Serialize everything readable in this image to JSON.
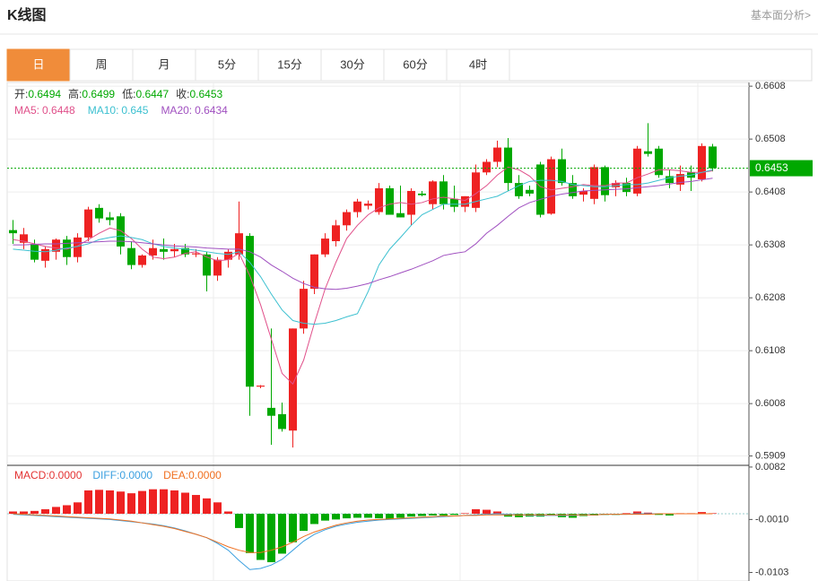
{
  "header": {
    "title": "K线图",
    "link": "基本面分析>"
  },
  "tabs": [
    "日",
    "周",
    "月",
    "5分",
    "15分",
    "30分",
    "60分",
    "4时"
  ],
  "active_tab": 0,
  "chart_data": [
    {
      "type": "candlestick",
      "ohlc_labels": [
        "开:",
        "高:",
        "低:",
        "收:"
      ],
      "up_color": "#ee2222",
      "down_color": "#00a800",
      "ylim": [
        0.5893,
        0.6615
      ],
      "yticks": [
        0.6608,
        0.6508,
        0.6408,
        0.6308,
        0.6208,
        0.6108,
        0.6008,
        0.5909
      ],
      "grid": true,
      "open": [
        0.6336,
        0.6312,
        0.631,
        0.6278,
        0.6295,
        0.6318,
        0.6285,
        0.6322,
        0.6378,
        0.636,
        0.6362,
        0.6302,
        0.627,
        0.6288,
        0.63,
        0.6296,
        0.6302,
        0.629,
        0.629,
        0.625,
        0.628,
        0.629,
        0.6325,
        0.604,
        0.6,
        0.5988,
        0.5957,
        0.615,
        0.6225,
        0.629,
        0.6315,
        0.6345,
        0.637,
        0.6382,
        0.637,
        0.6415,
        0.6368,
        0.6365,
        0.6405,
        0.6385,
        0.6428,
        0.6395,
        0.638,
        0.6378,
        0.6445,
        0.6465,
        0.6492,
        0.6425,
        0.6412,
        0.646,
        0.6367,
        0.647,
        0.6425,
        0.6403,
        0.6395,
        0.6455,
        0.6417,
        0.6425,
        0.6405,
        0.6485,
        0.649,
        0.6438,
        0.6422,
        0.6445,
        0.6432,
        0.6494
      ],
      "high": [
        0.6355,
        0.634,
        0.6318,
        0.6305,
        0.632,
        0.6325,
        0.633,
        0.638,
        0.6385,
        0.637,
        0.6368,
        0.6315,
        0.629,
        0.6318,
        0.632,
        0.631,
        0.631,
        0.63,
        0.6295,
        0.6285,
        0.63,
        0.639,
        0.633,
        0.6043,
        0.615,
        0.601,
        0.615,
        0.624,
        0.629,
        0.633,
        0.6355,
        0.6375,
        0.6395,
        0.6392,
        0.6425,
        0.642,
        0.642,
        0.6415,
        0.641,
        0.643,
        0.644,
        0.642,
        0.64,
        0.646,
        0.647,
        0.6505,
        0.651,
        0.644,
        0.642,
        0.6465,
        0.6475,
        0.649,
        0.644,
        0.6415,
        0.646,
        0.6458,
        0.643,
        0.6435,
        0.6495,
        0.6538,
        0.6495,
        0.645,
        0.6458,
        0.6458,
        0.65,
        0.6499
      ],
      "low": [
        0.631,
        0.63,
        0.6275,
        0.6265,
        0.628,
        0.627,
        0.6275,
        0.6315,
        0.635,
        0.6345,
        0.629,
        0.6262,
        0.6265,
        0.628,
        0.628,
        0.6285,
        0.6285,
        0.6285,
        0.622,
        0.624,
        0.6265,
        0.628,
        0.5985,
        0.6037,
        0.593,
        0.5955,
        0.5925,
        0.614,
        0.6215,
        0.6285,
        0.6305,
        0.6335,
        0.636,
        0.6375,
        0.6365,
        0.6365,
        0.636,
        0.6345,
        0.64,
        0.6375,
        0.6375,
        0.637,
        0.637,
        0.637,
        0.644,
        0.6455,
        0.641,
        0.6395,
        0.64,
        0.636,
        0.6365,
        0.642,
        0.6395,
        0.639,
        0.6385,
        0.639,
        0.64,
        0.64,
        0.64,
        0.6475,
        0.6435,
        0.6415,
        0.641,
        0.641,
        0.6428,
        0.6447
      ],
      "close": [
        0.633,
        0.6328,
        0.628,
        0.63,
        0.6318,
        0.6285,
        0.6322,
        0.6375,
        0.6358,
        0.6355,
        0.6305,
        0.627,
        0.6288,
        0.6302,
        0.6295,
        0.63,
        0.629,
        0.6292,
        0.625,
        0.628,
        0.6295,
        0.633,
        0.604,
        0.6042,
        0.5985,
        0.596,
        0.615,
        0.6225,
        0.629,
        0.632,
        0.6345,
        0.637,
        0.639,
        0.6386,
        0.6415,
        0.6365,
        0.636,
        0.641,
        0.6402,
        0.6428,
        0.6385,
        0.638,
        0.64,
        0.6445,
        0.6465,
        0.6492,
        0.6425,
        0.64,
        0.6405,
        0.6365,
        0.647,
        0.6425,
        0.64,
        0.641,
        0.6455,
        0.6402,
        0.6425,
        0.6408,
        0.649,
        0.648,
        0.644,
        0.6425,
        0.6442,
        0.6435,
        0.6495,
        0.6453
      ],
      "series": [
        {
          "name": "MA5: ",
          "color": "#e0508a",
          "values": [
            0.6318,
            0.6315,
            0.631,
            0.6305,
            0.6302,
            0.63,
            0.6306,
            0.6318,
            0.633,
            0.634,
            0.6335,
            0.632,
            0.63,
            0.6285,
            0.6282,
            0.6285,
            0.6292,
            0.6295,
            0.6285,
            0.6278,
            0.628,
            0.6292,
            0.625,
            0.6195,
            0.613,
            0.6065,
            0.6045,
            0.609,
            0.616,
            0.6225,
            0.6275,
            0.632,
            0.6345,
            0.6365,
            0.6378,
            0.6385,
            0.6388,
            0.6385,
            0.6388,
            0.6395,
            0.6398,
            0.6395,
            0.6392,
            0.6405,
            0.642,
            0.644,
            0.6455,
            0.645,
            0.6438,
            0.6418,
            0.6412,
            0.6415,
            0.6418,
            0.6422,
            0.642,
            0.642,
            0.6425,
            0.6425,
            0.6435,
            0.6442,
            0.645,
            0.645,
            0.6448,
            0.6445,
            0.6445,
            0.6448
          ]
        },
        {
          "name": "MA10: ",
          "color": "#3cc0d0",
          "values": [
            0.63,
            0.6298,
            0.6296,
            0.6295,
            0.6298,
            0.6302,
            0.6305,
            0.631,
            0.6318,
            0.6322,
            0.6325,
            0.6322,
            0.6318,
            0.631,
            0.6305,
            0.6302,
            0.63,
            0.6298,
            0.6295,
            0.6292,
            0.629,
            0.6295,
            0.6275,
            0.6248,
            0.6215,
            0.6185,
            0.6165,
            0.616,
            0.6158,
            0.616,
            0.6165,
            0.6172,
            0.6178,
            0.622,
            0.627,
            0.63,
            0.6322,
            0.6345,
            0.6365,
            0.6375,
            0.6385,
            0.6385,
            0.6385,
            0.639,
            0.6395,
            0.64,
            0.641,
            0.642,
            0.6428,
            0.643,
            0.643,
            0.6428,
            0.6422,
            0.642,
            0.6418,
            0.6418,
            0.642,
            0.6422,
            0.6422,
            0.6425,
            0.643,
            0.6435,
            0.6438,
            0.644,
            0.6445,
            0.645
          ]
        },
        {
          "name": "MA20: ",
          "color": "#a050c0",
          "values": [
            0.6308,
            0.6308,
            0.6309,
            0.631,
            0.631,
            0.6311,
            0.6312,
            0.6313,
            0.6314,
            0.6315,
            0.6315,
            0.6314,
            0.6312,
            0.631,
            0.6308,
            0.6306,
            0.6305,
            0.6304,
            0.6302,
            0.6301,
            0.63,
            0.63,
            0.6295,
            0.6285,
            0.627,
            0.6258,
            0.6245,
            0.6235,
            0.6228,
            0.6225,
            0.6224,
            0.6226,
            0.623,
            0.6235,
            0.6242,
            0.6248,
            0.6255,
            0.6262,
            0.627,
            0.6278,
            0.6288,
            0.6292,
            0.6295,
            0.631,
            0.633,
            0.6345,
            0.6362,
            0.6378,
            0.6388,
            0.6394,
            0.64,
            0.6404,
            0.6407,
            0.641,
            0.6411,
            0.6412,
            0.6413,
            0.6414,
            0.6416,
            0.6418,
            0.642,
            0.6423,
            0.6426,
            0.6428,
            0.6431,
            0.6434
          ]
        }
      ]
    },
    {
      "type": "macd",
      "histogram_name": "MACD:",
      "histogram_color": "#e33333",
      "legend_values": [
        {
          "value": 0,
          "label": "0.0000"
        },
        {
          "value": 0,
          "label": "0.0000"
        },
        {
          "value": 0,
          "label": "0.0000"
        }
      ],
      "up_color": "#ee2222",
      "down_color": "#00a800",
      "ylim": [
        -0.0118,
        0.0085
      ],
      "yticks": [
        0.0082,
        {
          "value": -0.001,
          "label": "-0.0010"
        },
        -0.0103
      ],
      "histogram": [
        0.0004,
        0.0004,
        0.0005,
        0.0008,
        0.0012,
        0.0015,
        0.002,
        0.0041,
        0.0042,
        0.0041,
        0.0039,
        0.0036,
        0.004,
        0.0043,
        0.0043,
        0.0041,
        0.0037,
        0.0033,
        0.0027,
        0.002,
        0.0004,
        -0.0025,
        -0.0069,
        -0.0081,
        -0.0085,
        -0.007,
        -0.005,
        -0.003,
        -0.0018,
        -0.0012,
        -0.001,
        -0.0008,
        -0.0007,
        -0.0007,
        -0.0008,
        -0.001,
        -0.0007,
        -0.0005,
        -0.0004,
        -0.0003,
        -0.0003,
        -0.0002,
        0.0001,
        0.0008,
        0.0007,
        0.0004,
        -0.0005,
        -0.0006,
        -0.0005,
        -0.0005,
        -0.0003,
        -0.0006,
        -0.0007,
        -0.0004,
        -0.0003,
        -0.0002,
        -0.0002,
        0.0001,
        0.0004,
        0.0002,
        -0.0002,
        -0.0003,
        0.0001,
        0.0001,
        0.0003,
        0.0001
      ],
      "series": [
        {
          "name": "DIFF:",
          "color": "#3ca0e0",
          "values": [
            -0.0001,
            -0.0002,
            -0.0003,
            -0.0004,
            -0.0005,
            -0.0006,
            -0.0007,
            -0.0008,
            -0.0009,
            -0.001,
            -0.0012,
            -0.0014,
            -0.0016,
            -0.0018,
            -0.0021,
            -0.0025,
            -0.003,
            -0.0036,
            -0.0042,
            -0.0052,
            -0.0064,
            -0.0082,
            -0.0098,
            -0.0096,
            -0.009,
            -0.008,
            -0.0064,
            -0.0048,
            -0.0036,
            -0.0028,
            -0.0022,
            -0.0018,
            -0.0015,
            -0.0013,
            -0.0011,
            -0.001,
            -0.0009,
            -0.0008,
            -0.0007,
            -0.0006,
            -0.0005,
            -0.0004,
            -0.0003,
            -0.0002,
            -0.0001,
            0,
            -0.0001,
            -0.0002,
            -0.0003,
            -0.0003,
            -0.0003,
            -0.0003,
            -0.0003,
            -0.0002,
            -0.0002,
            -0.0001,
            -0.0001,
            -0.0001,
            0,
            0,
            0,
            0,
            0,
            0,
            0,
            0
          ]
        },
        {
          "name": "DEA:",
          "color": "#f07020",
          "values": [
            0,
            -0.0001,
            -0.0002,
            -0.0003,
            -0.0004,
            -0.0005,
            -0.0006,
            -0.0007,
            -0.0008,
            -0.0009,
            -0.0011,
            -0.0013,
            -0.0016,
            -0.0019,
            -0.0022,
            -0.0026,
            -0.0031,
            -0.0036,
            -0.0042,
            -0.005,
            -0.0058,
            -0.0064,
            -0.0068,
            -0.0068,
            -0.0064,
            -0.0058,
            -0.005,
            -0.004,
            -0.0032,
            -0.0026,
            -0.002,
            -0.0016,
            -0.0013,
            -0.0011,
            -0.001,
            -0.0009,
            -0.0008,
            -0.0007,
            -0.0006,
            -0.0005,
            -0.0004,
            -0.0004,
            -0.0003,
            -0.0003,
            -0.0002,
            -0.0002,
            -0.0002,
            -0.0002,
            -0.0002,
            -0.0002,
            -0.0002,
            -0.0002,
            -0.0002,
            -0.0002,
            -0.0002,
            -0.0001,
            -0.0001,
            -0.0001,
            -0.0001,
            -0.0001,
            0,
            0,
            0,
            0,
            0,
            0
          ]
        }
      ]
    }
  ]
}
